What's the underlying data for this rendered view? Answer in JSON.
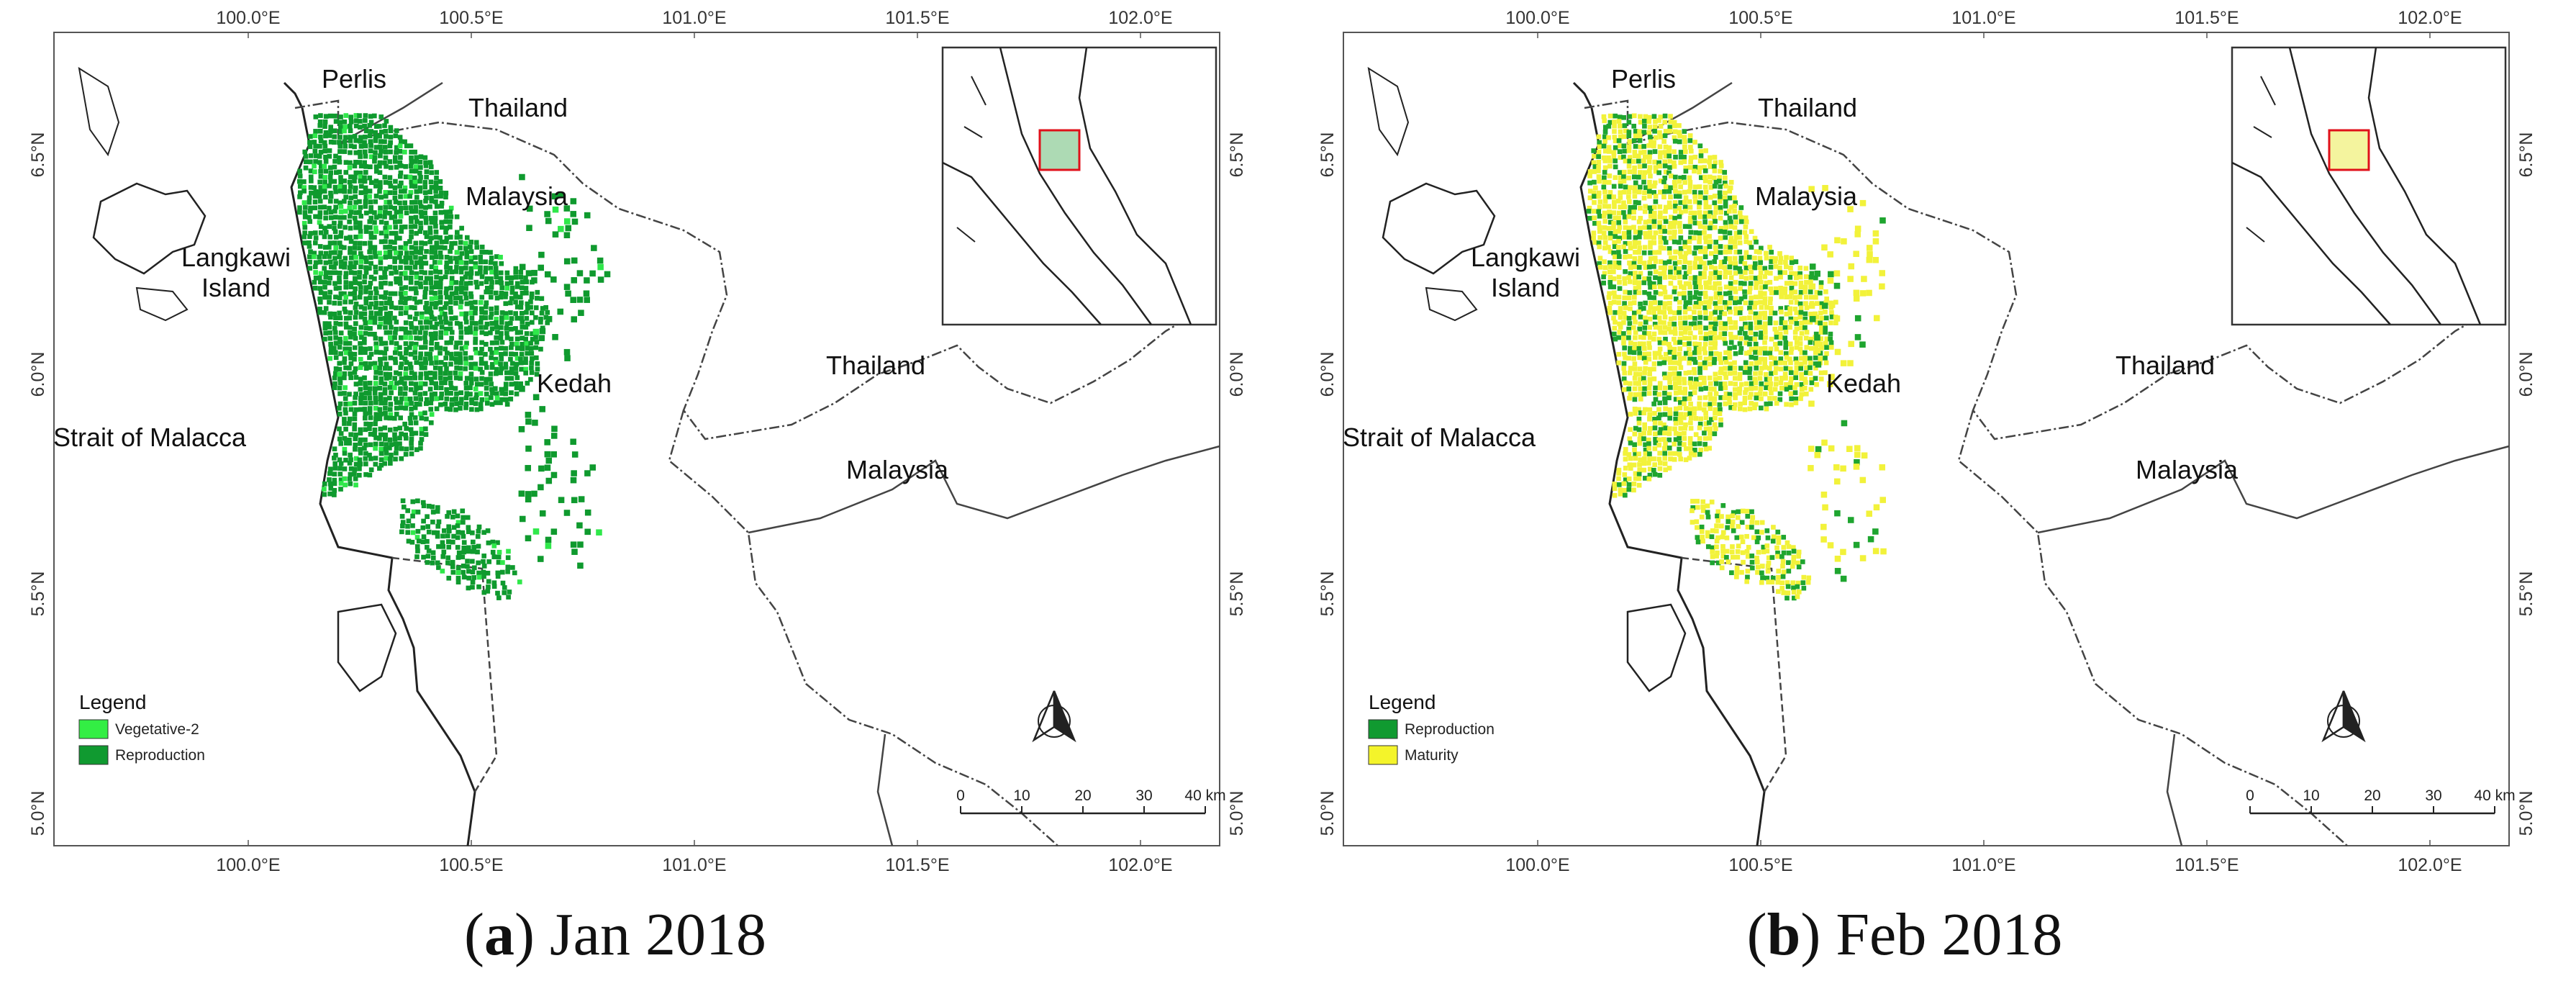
{
  "panels": [
    {
      "id": "a",
      "caption_letter": "a",
      "caption_text": "Jan 2018",
      "legend_title": "Legend",
      "legend": [
        {
          "label": "Vegetative-2",
          "color": "#33ee44"
        },
        {
          "label": "Reproduction",
          "color": "#109a30"
        }
      ],
      "fill_mix": {
        "primary": "#0f9a2e",
        "secondary": "#2fe84a",
        "secondary_share": 0.07
      }
    },
    {
      "id": "b",
      "caption_letter": "b",
      "caption_text": "Feb 2018",
      "legend_title": "Legend",
      "legend": [
        {
          "label": "Reproduction",
          "color": "#109a30"
        },
        {
          "label": "Maturity",
          "color": "#f4f42a"
        }
      ],
      "fill_mix": {
        "primary": "#f2f23a",
        "secondary": "#1ea52f",
        "secondary_share": 0.3
      }
    }
  ],
  "map": {
    "lon_labels": [
      "100.0°E",
      "100.5°E",
      "101.0°E",
      "101.5°E",
      "102.0°E"
    ],
    "lat_labels": [
      "6.5°N",
      "6.0°N",
      "5.5°N",
      "5.0°N"
    ],
    "place_labels": {
      "perlis": "Perlis",
      "thailand_top": "Thailand",
      "malaysia_top": "Malaysia",
      "langkawi": [
        "Langkawi",
        "Island"
      ],
      "kedah": "Kedah",
      "thailand_right": "Thailand",
      "malaysia_right": "Malaysia",
      "strait": "Strait of Malacca"
    },
    "scale_bar": {
      "ticks": [
        "0",
        "10",
        "20",
        "30",
        "40 km"
      ]
    }
  }
}
